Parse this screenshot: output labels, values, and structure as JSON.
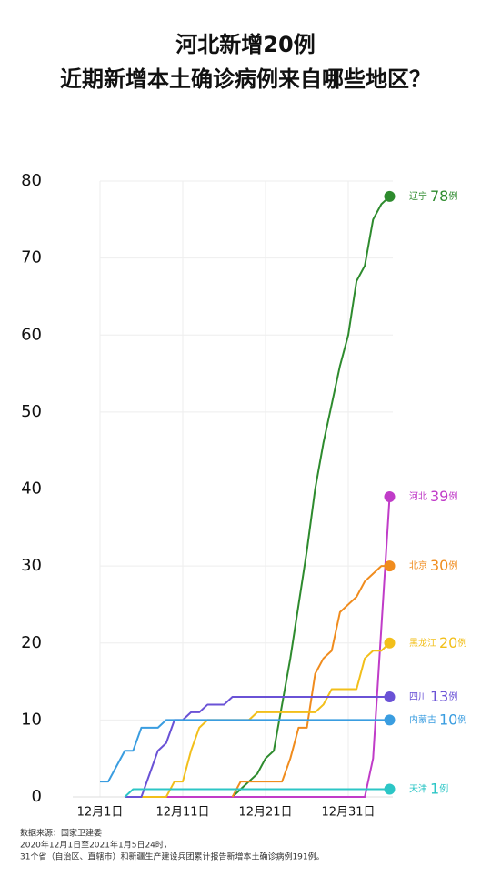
{
  "chart_data": {
    "type": "line",
    "title": "河北新增20例",
    "subtitle": "近期新增本土确诊病例来自哪些地区？",
    "unit": "例",
    "categories": [
      "12月1日",
      null,
      null,
      null,
      null,
      null,
      null,
      null,
      null,
      null,
      "12月11日",
      null,
      null,
      null,
      null,
      null,
      null,
      null,
      null,
      null,
      "12月21日",
      null,
      null,
      null,
      null,
      null,
      null,
      null,
      null,
      null,
      "12月31日",
      null,
      null,
      null,
      null,
      null
    ],
    "ylim": [
      0,
      80
    ],
    "yticks": [
      0,
      10,
      20,
      30,
      40,
      50,
      60,
      70,
      80
    ],
    "grid": true,
    "series": [
      {
        "name": "辽宁",
        "color": "#2e8b2e",
        "values": [
          null,
          null,
          null,
          null,
          null,
          null,
          null,
          null,
          null,
          null,
          null,
          null,
          null,
          null,
          null,
          null,
          0,
          1,
          2,
          3,
          5,
          6,
          12,
          18,
          25,
          32,
          40,
          46,
          51,
          56,
          60,
          67,
          69,
          75,
          77,
          78
        ]
      },
      {
        "name": "河北",
        "color": "#c03cc8",
        "values": [
          null,
          null,
          null,
          0,
          0,
          0,
          0,
          0,
          0,
          0,
          0,
          0,
          0,
          0,
          0,
          0,
          0,
          0,
          0,
          0,
          0,
          0,
          0,
          0,
          0,
          0,
          0,
          0,
          0,
          0,
          0,
          0,
          0,
          5,
          22,
          39
        ]
      },
      {
        "name": "北京",
        "color": "#f08c1e",
        "values": [
          null,
          null,
          null,
          null,
          null,
          null,
          null,
          null,
          null,
          null,
          null,
          null,
          null,
          null,
          null,
          null,
          0,
          2,
          2,
          2,
          2,
          2,
          2,
          5,
          9,
          9,
          16,
          18,
          19,
          24,
          25,
          26,
          28,
          29,
          30,
          30
        ]
      },
      {
        "name": "黑龙江",
        "color": "#f2bf1a",
        "values": [
          null,
          null,
          null,
          null,
          null,
          0,
          0,
          0,
          0,
          2,
          2,
          6,
          9,
          10,
          10,
          10,
          10,
          10,
          10,
          11,
          11,
          11,
          11,
          11,
          11,
          11,
          11,
          12,
          14,
          14,
          14,
          14,
          18,
          19,
          19,
          20
        ]
      },
      {
        "name": "四川",
        "color": "#6a52d6",
        "values": [
          null,
          null,
          null,
          0,
          0,
          0,
          3,
          6,
          7,
          10,
          10,
          11,
          11,
          12,
          12,
          12,
          13,
          13,
          13,
          13,
          13,
          13,
          13,
          13,
          13,
          13,
          13,
          13,
          13,
          13,
          13,
          13,
          13,
          13,
          13,
          13
        ]
      },
      {
        "name": "内蒙古",
        "color": "#3a9de0",
        "values": [
          2,
          2,
          4,
          6,
          6,
          9,
          9,
          9,
          10,
          10,
          10,
          10,
          10,
          10,
          10,
          10,
          10,
          10,
          10,
          10,
          10,
          10,
          10,
          10,
          10,
          10,
          10,
          10,
          10,
          10,
          10,
          10,
          10,
          10,
          10,
          10
        ]
      },
      {
        "name": "天津",
        "color": "#2cc6c6",
        "values": [
          null,
          null,
          null,
          0,
          1,
          1,
          1,
          1,
          1,
          1,
          1,
          1,
          1,
          1,
          1,
          1,
          1,
          1,
          1,
          1,
          1,
          1,
          1,
          1,
          1,
          1,
          1,
          1,
          1,
          1,
          1,
          1,
          1,
          1,
          1,
          1
        ]
      }
    ],
    "source": [
      "数据来源：国家卫建委",
      "2020年12月1日至2021年1月5日24时，",
      "31个省（自治区、直辖市）和新疆生产建设兵团累计报告新增本土确诊病例191例。"
    ]
  }
}
